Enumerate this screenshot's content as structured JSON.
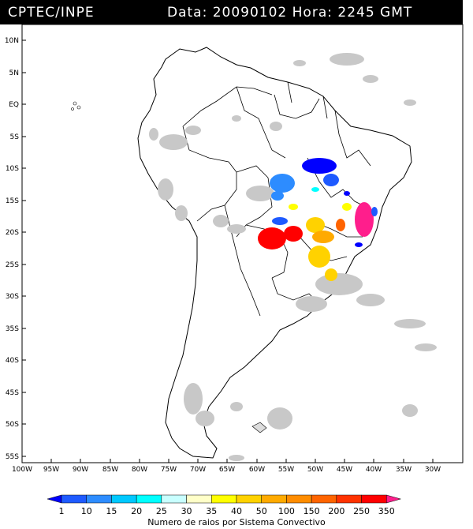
{
  "header": {
    "org": "CPTEC/INPE",
    "datetime": "Data: 20090102 Hora: 2245 GMT"
  },
  "axes": {
    "lat_labels": [
      "10N",
      "5N",
      "EQ",
      "5S",
      "10S",
      "15S",
      "20S",
      "25S",
      "30S",
      "35S",
      "40S",
      "45S",
      "50S",
      "55S"
    ],
    "lon_labels": [
      "100W",
      "95W",
      "90W",
      "85W",
      "80W",
      "75W",
      "70W",
      "65W",
      "60W",
      "55W",
      "50W",
      "45W",
      "40W",
      "35W",
      "30W"
    ]
  },
  "legend": {
    "caption": "Numero de raios por Sistema Convectivo",
    "ticks": [
      "1",
      "10",
      "15",
      "20",
      "25",
      "30",
      "35",
      "40",
      "50",
      "100",
      "150",
      "200",
      "250",
      "350"
    ],
    "colors": [
      "#0000ff",
      "#1e5aff",
      "#2d8cff",
      "#00c8ff",
      "#00ffff",
      "#c8ffff",
      "#ffffc8",
      "#ffff00",
      "#ffd200",
      "#ffaa00",
      "#ff8c00",
      "#ff6400",
      "#ff3200",
      "#ff0000",
      "#ff1e8c"
    ]
  }
}
